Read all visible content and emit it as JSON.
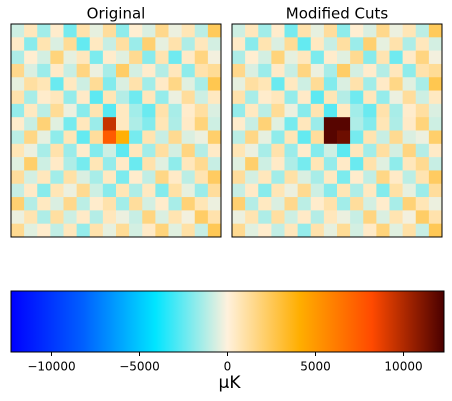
{
  "chart_data": [
    {
      "type": "heatmap",
      "title": "Original",
      "z": [
        [
          -800,
          600,
          -1500,
          300,
          -2200,
          900,
          -400,
          1200,
          -1800,
          200,
          -600,
          1500,
          -300,
          700,
          -1100,
          2400
        ],
        [
          400,
          -1900,
          800,
          -600,
          1300,
          -2500,
          500,
          -900,
          1100,
          -1600,
          2000,
          -400,
          900,
          -1300,
          600,
          -700
        ],
        [
          -1300,
          200,
          -700,
          1800,
          -400,
          600,
          -2100,
          300,
          -500,
          1400,
          -1900,
          800,
          -2300,
          400,
          1700,
          -200
        ],
        [
          1500,
          -600,
          -1600,
          400,
          -900,
          1700,
          -300,
          -1400,
          2200,
          -700,
          300,
          -1200,
          600,
          -1800,
          900,
          1300
        ],
        [
          -400,
          1100,
          700,
          -2400,
          500,
          -800,
          1300,
          -2000,
          -600,
          900,
          -1500,
          400,
          1600,
          -500,
          -1400,
          2600
        ],
        [
          900,
          -1400,
          300,
          600,
          -1700,
          400,
          -2600,
          700,
          -1200,
          -2300,
          600,
          -1700,
          -300,
          1200,
          -800,
          500
        ],
        [
          -1700,
          500,
          -1100,
          1300,
          -300,
          -1900,
          800,
          -2700,
          500,
          -1500,
          -2400,
          900,
          -1400,
          300,
          1100,
          -600
        ],
        [
          300,
          -900,
          1900,
          -500,
          -2200,
          600,
          -1600,
          9500,
          500,
          -1300,
          -2000,
          700,
          -1300,
          400,
          1800,
          -800
        ],
        [
          -1100,
          1600,
          -400,
          -1800,
          700,
          -2500,
          1200,
          7500,
          4000,
          -2200,
          800,
          -900,
          1400,
          -600,
          -300,
          2100
        ],
        [
          700,
          -300,
          -1400,
          900,
          -1600,
          300,
          -2000,
          -800,
          -2600,
          600,
          -1500,
          1100,
          -700,
          1700,
          -1200,
          400
        ],
        [
          -500,
          2100,
          -800,
          400,
          -1300,
          -2200,
          700,
          -1700,
          400,
          -2400,
          900,
          -500,
          -1800,
          600,
          1400,
          -900
        ],
        [
          1200,
          -700,
          600,
          -1500,
          1000,
          -600,
          -1400,
          500,
          -2100,
          300,
          -1000,
          1600,
          400,
          -1100,
          800,
          2300
        ],
        [
          -900,
          400,
          -1900,
          700,
          -300,
          1400,
          -800,
          -1900,
          700,
          -1300,
          500,
          -2000,
          1000,
          -400,
          -1600,
          1200
        ],
        [
          2000,
          -1200,
          500,
          -600,
          1500,
          -1100,
          300,
          900,
          -1500,
          1200,
          -700,
          300,
          -1400,
          1900,
          700,
          -300
        ],
        [
          -300,
          800,
          -1300,
          1100,
          -800,
          400,
          -1200,
          600,
          -300,
          -900,
          1700,
          -600,
          800,
          -200,
          2200,
          900
        ],
        [
          1400,
          -500,
          300,
          -1000,
          600,
          -1700,
          900,
          -400,
          1300,
          -700,
          400,
          1800,
          -500,
          1000,
          -900,
          2500
        ]
      ]
    },
    {
      "type": "heatmap",
      "title": "Modified Cuts",
      "z": [
        [
          -800,
          600,
          -1500,
          300,
          -2200,
          900,
          -400,
          1200,
          -1800,
          200,
          -600,
          1500,
          -300,
          700,
          -1100,
          2400
        ],
        [
          400,
          -1900,
          800,
          -600,
          1300,
          -2500,
          500,
          -900,
          1100,
          -1600,
          2000,
          -400,
          900,
          -1300,
          600,
          -700
        ],
        [
          -1300,
          200,
          -700,
          1800,
          -400,
          600,
          -2100,
          300,
          -500,
          1400,
          -1900,
          800,
          -2300,
          400,
          1700,
          -200
        ],
        [
          1500,
          -600,
          -1600,
          400,
          -900,
          1700,
          -300,
          -1400,
          2200,
          -700,
          300,
          -1200,
          600,
          -1800,
          900,
          1300
        ],
        [
          -400,
          1100,
          700,
          -2400,
          500,
          -800,
          1300,
          -2000,
          -600,
          900,
          -1500,
          400,
          1600,
          -500,
          -1400,
          2600
        ],
        [
          900,
          -1400,
          300,
          600,
          -1700,
          400,
          -2600,
          700,
          -1200,
          -2300,
          600,
          -1700,
          -300,
          1200,
          -800,
          500
        ],
        [
          -1700,
          500,
          -1100,
          1300,
          -300,
          -1900,
          800,
          -2700,
          500,
          -1500,
          -2400,
          900,
          -1400,
          300,
          1100,
          -600
        ],
        [
          300,
          -900,
          1900,
          -500,
          -2200,
          600,
          -1600,
          12000,
          12000,
          -1300,
          -2000,
          700,
          -1300,
          400,
          1800,
          -800
        ],
        [
          -1100,
          1600,
          -400,
          -1800,
          700,
          -2500,
          1200,
          12000,
          11500,
          -2200,
          800,
          -900,
          1400,
          -600,
          -300,
          2100
        ],
        [
          700,
          -300,
          -1400,
          900,
          -1600,
          300,
          -2000,
          -800,
          -2600,
          600,
          -1500,
          1100,
          -700,
          1700,
          -1200,
          400
        ],
        [
          -500,
          2100,
          -800,
          400,
          -1300,
          -2200,
          700,
          -1700,
          400,
          -2400,
          900,
          -500,
          -1800,
          600,
          1400,
          -900
        ],
        [
          1200,
          -700,
          600,
          -1500,
          1000,
          -600,
          -1400,
          500,
          -2100,
          300,
          -1000,
          1600,
          400,
          -1100,
          800,
          2300
        ],
        [
          -900,
          400,
          -1900,
          700,
          -300,
          1400,
          -800,
          -1900,
          700,
          -1300,
          500,
          -2000,
          1000,
          -400,
          -1600,
          1200
        ],
        [
          2000,
          -1200,
          500,
          -600,
          1500,
          -1100,
          300,
          900,
          -1500,
          1200,
          -700,
          300,
          -1400,
          1900,
          700,
          -300
        ],
        [
          -300,
          800,
          -1300,
          1100,
          -800,
          400,
          -1200,
          600,
          -300,
          -900,
          1700,
          -600,
          800,
          -200,
          2200,
          900
        ],
        [
          1400,
          -500,
          300,
          -1000,
          600,
          -1700,
          900,
          -400,
          1300,
          -700,
          400,
          1800,
          -500,
          1000,
          -900,
          2500
        ]
      ]
    },
    {
      "type": "colorbar",
      "label": "μK",
      "vlim": [
        -12300,
        12300
      ],
      "ticks": [
        {
          "value": -10000,
          "label": "−10000"
        },
        {
          "value": -5000,
          "label": "−5000"
        },
        0,
        5000,
        10000
      ],
      "colors": [
        "#0000ff",
        "#0060ff",
        "#00e5ff",
        "#fff1dc",
        "#ffae00",
        "#ff4a00",
        "#4a0000"
      ]
    }
  ]
}
